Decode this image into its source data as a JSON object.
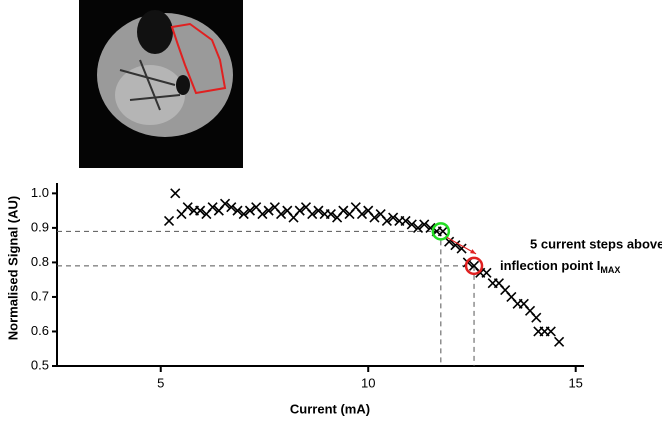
{
  "chart_data": {
    "type": "scatter",
    "xlabel": "Current (mA)",
    "ylabel": "Normalised Signal (AU)",
    "x": [
      5.2,
      5.35,
      5.5,
      5.65,
      5.8,
      5.95,
      6.1,
      6.25,
      6.4,
      6.55,
      6.7,
      6.85,
      7.0,
      7.15,
      7.3,
      7.45,
      7.6,
      7.75,
      7.9,
      8.05,
      8.2,
      8.35,
      8.5,
      8.65,
      8.8,
      8.95,
      9.1,
      9.25,
      9.4,
      9.55,
      9.7,
      9.85,
      10.0,
      10.15,
      10.3,
      10.45,
      10.6,
      10.75,
      10.9,
      11.05,
      11.2,
      11.35,
      11.5,
      11.65,
      11.8,
      11.95,
      12.1,
      12.25,
      12.4,
      12.55,
      12.7,
      12.85,
      13.0,
      13.15,
      13.3,
      13.45,
      13.6,
      13.75,
      13.9,
      14.05,
      14.1,
      14.25,
      14.4,
      14.6
    ],
    "values": [
      0.92,
      1.0,
      0.94,
      0.96,
      0.95,
      0.95,
      0.94,
      0.96,
      0.95,
      0.97,
      0.96,
      0.95,
      0.94,
      0.95,
      0.96,
      0.94,
      0.95,
      0.96,
      0.94,
      0.95,
      0.93,
      0.95,
      0.96,
      0.94,
      0.95,
      0.94,
      0.94,
      0.93,
      0.95,
      0.94,
      0.96,
      0.94,
      0.95,
      0.93,
      0.94,
      0.92,
      0.93,
      0.92,
      0.92,
      0.91,
      0.9,
      0.91,
      0.9,
      0.89,
      0.89,
      0.86,
      0.85,
      0.84,
      0.8,
      0.79,
      0.77,
      0.77,
      0.74,
      0.74,
      0.72,
      0.7,
      0.68,
      0.68,
      0.66,
      0.64,
      0.6,
      0.6,
      0.6,
      0.57
    ],
    "color": "#000000",
    "xlim": [
      2.5,
      15.2
    ],
    "xticks": [
      5,
      10,
      15
    ],
    "ylim": [
      0.5,
      1.03
    ],
    "yticks": [
      {
        "value": 1.0,
        "label": "1.0"
      },
      0.9,
      0.8,
      0.7,
      0.6,
      0.5
    ],
    "highlights": [
      {
        "x": 11.75,
        "y": 0.89,
        "color": "#22dd22"
      },
      {
        "x": 12.55,
        "y": 0.79,
        "color": "#e02020"
      }
    ],
    "annotation": {
      "lines": [
        "5 current steps above",
        "inflection point I"
      ],
      "subscript": "MAX"
    }
  }
}
